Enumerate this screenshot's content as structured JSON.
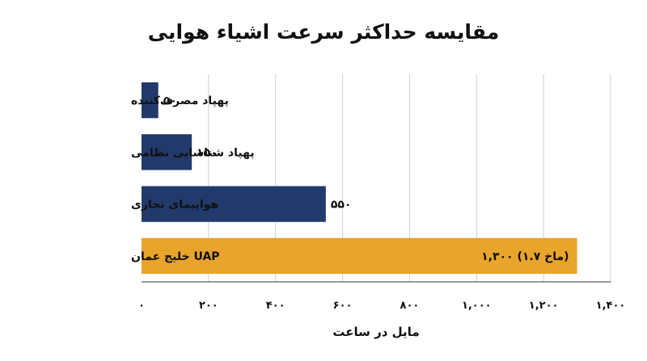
{
  "chart_data": {
    "type": "bar",
    "orientation": "horizontal",
    "title": "مقایسه حداکثر سرعت اشیاء هوایی",
    "xlabel": "مایل در ساعت",
    "ylabel": "",
    "xlim": [
      0,
      1400
    ],
    "grid": true,
    "tick_values": [
      0,
      200,
      400,
      600,
      800,
      1000,
      1200,
      1400
    ],
    "tick_labels": [
      "۰",
      "۲۰۰",
      "۴۰۰",
      "۶۰۰",
      "۸۰۰",
      "۱,۰۰۰",
      "۱,۲۰۰",
      "۱,۴۰۰"
    ],
    "categories": [
      "پهپاد مصرف‌کننده",
      "پهپاد شناسایی نظامی",
      "هواپیمای تجاری",
      "UAP خلیج عمان"
    ],
    "values": [
      50,
      150,
      550,
      1300
    ],
    "value_labels": [
      "۵۰",
      "۱۵۰",
      "۵۵۰",
      "۱,۳۰۰ (۱.۷ ماخ)"
    ],
    "bar_colors": [
      "#223a6b",
      "#223a6b",
      "#223a6b",
      "#e8a42b"
    ],
    "gridline_color": "#d0d0d0"
  }
}
